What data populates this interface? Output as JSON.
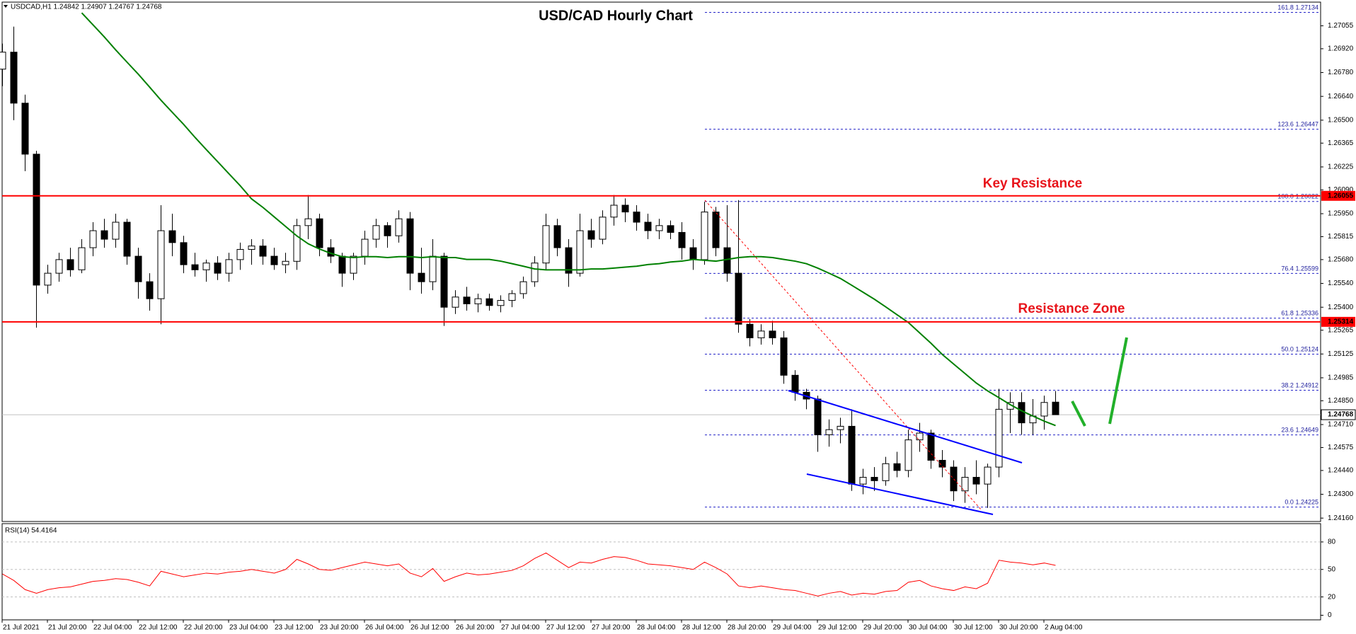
{
  "chart_data": [
    {
      "type": "candlestick",
      "title": "USD/CAD Hourly Chart",
      "header": "USDCAD,H1  1.24842 1.24907 1.24767 1.24768",
      "annotations": [
        "Key Resistance",
        "Resistance Zone"
      ],
      "categories": [
        "21 Jul 2021",
        null,
        null,
        null,
        "21 Jul 20:00",
        null,
        null,
        null,
        "22 Jul 04:00",
        null,
        null,
        null,
        "22 Jul 12:00",
        null,
        null,
        null,
        "22 Jul 20:00",
        null,
        null,
        null,
        "23 Jul 04:00",
        null,
        null,
        null,
        "23 Jul 12:00",
        null,
        null,
        null,
        "23 Jul 20:00",
        null,
        null,
        null,
        "26 Jul 04:00",
        null,
        null,
        null,
        "26 Jul 12:00",
        null,
        null,
        null,
        "26 Jul 20:00",
        null,
        null,
        null,
        "27 Jul 04:00",
        null,
        null,
        null,
        "27 Jul 12:00",
        null,
        null,
        null,
        "27 Jul 20:00",
        null,
        null,
        null,
        "28 Jul 04:00",
        null,
        null,
        null,
        "28 Jul 12:00",
        null,
        null,
        null,
        "28 Jul 20:00",
        null,
        null,
        null,
        "29 Jul 04:00",
        null,
        null,
        null,
        "29 Jul 12:00",
        null,
        null,
        null,
        "29 Jul 20:00",
        null,
        null,
        null,
        "30 Jul 04:00",
        null,
        null,
        null,
        "30 Jul 12:00",
        null,
        null,
        null,
        "30 Jul 20:00",
        null,
        null,
        null,
        "2 Aug 04:00",
        null
      ],
      "open": [
        1.268,
        1.269,
        1.266,
        1.263,
        1.2553,
        1.256,
        1.2568,
        1.2562,
        1.2575,
        1.2585,
        1.258,
        1.259,
        1.257,
        1.2555,
        1.2545,
        1.2585,
        1.2578,
        1.2565,
        1.2562,
        1.2566,
        1.256,
        1.2568,
        1.2574,
        1.2576,
        1.257,
        1.2565,
        1.2567,
        1.2588,
        1.2592,
        1.2575,
        1.257,
        1.256,
        1.257,
        1.258,
        1.2588,
        1.2582,
        1.2592,
        1.256,
        1.2555,
        1.257,
        1.254,
        1.2546,
        1.2542,
        1.2545,
        1.2541,
        1.2544,
        1.2548,
        1.2555,
        1.2566,
        1.2588,
        1.2575,
        1.256,
        1.2585,
        1.258,
        1.2593,
        1.26,
        1.2596,
        1.259,
        1.2585,
        1.2588,
        1.2584,
        1.2575,
        1.2568,
        1.2596,
        1.2575,
        1.256,
        1.253,
        1.2522,
        1.2526,
        1.2522,
        1.25,
        1.249,
        1.2486,
        1.2465,
        1.2468,
        1.247,
        1.2436,
        1.244,
        1.2438,
        1.2448,
        1.2444,
        1.2462,
        1.2466,
        1.245,
        1.2446,
        1.2432,
        1.244,
        1.2436,
        1.2446,
        1.248,
        1.2484,
        1.2472,
        1.2476,
        1.24842
      ],
      "high": [
        1.2695,
        1.2705,
        1.2665,
        1.2632,
        1.2565,
        1.2572,
        1.2575,
        1.258,
        1.259,
        1.2592,
        1.2595,
        1.2592,
        1.2575,
        1.256,
        1.26,
        1.2595,
        1.2582,
        1.2572,
        1.2568,
        1.257,
        1.2572,
        1.2578,
        1.258,
        1.258,
        1.2575,
        1.2572,
        1.2592,
        1.2606,
        1.2595,
        1.258,
        1.2572,
        1.2572,
        1.2585,
        1.2592,
        1.259,
        1.2597,
        1.2596,
        1.2575,
        1.258,
        1.2572,
        1.255,
        1.2552,
        1.2548,
        1.2548,
        1.2547,
        1.255,
        1.2558,
        1.257,
        1.2595,
        1.2592,
        1.258,
        1.2595,
        1.2592,
        1.2597,
        1.2606,
        1.2604,
        1.26,
        1.2595,
        1.2592,
        1.2591,
        1.259,
        1.258,
        1.2602,
        1.2599,
        1.26,
        1.2603,
        1.2533,
        1.253,
        1.2532,
        1.2526,
        1.2503,
        1.2492,
        1.2488,
        1.2474,
        1.2475,
        1.248,
        1.2445,
        1.2446,
        1.2452,
        1.2455,
        1.2468,
        1.2472,
        1.2468,
        1.2456,
        1.245,
        1.2446,
        1.245,
        1.2448,
        1.2492,
        1.249,
        1.249,
        1.2486,
        1.2488,
        1.24907
      ],
      "low": [
        1.267,
        1.265,
        1.262,
        1.2528,
        1.2548,
        1.2555,
        1.2558,
        1.256,
        1.257,
        1.2575,
        1.2575,
        1.2565,
        1.2545,
        1.2538,
        1.253,
        1.257,
        1.256,
        1.2558,
        1.2555,
        1.2556,
        1.2555,
        1.2562,
        1.2565,
        1.2565,
        1.2562,
        1.256,
        1.2562,
        1.258,
        1.257,
        1.2566,
        1.2552,
        1.2556,
        1.2565,
        1.2575,
        1.2575,
        1.2578,
        1.255,
        1.2548,
        1.255,
        1.2529,
        1.2536,
        1.2538,
        1.2537,
        1.2538,
        1.2537,
        1.254,
        1.2545,
        1.2552,
        1.2562,
        1.257,
        1.2552,
        1.2558,
        1.2575,
        1.2577,
        1.2588,
        1.259,
        1.2585,
        1.258,
        1.258,
        1.258,
        1.2568,
        1.2562,
        1.2565,
        1.257,
        1.2555,
        1.2525,
        1.2517,
        1.2518,
        1.2518,
        1.2495,
        1.2485,
        1.248,
        1.2455,
        1.2458,
        1.246,
        1.2432,
        1.243,
        1.2432,
        1.2435,
        1.244,
        1.244,
        1.2455,
        1.2445,
        1.244,
        1.2426,
        1.2425,
        1.243,
        1.2422,
        1.244,
        1.2466,
        1.2465,
        1.2465,
        1.2468,
        1.24767
      ],
      "close": [
        1.269,
        1.266,
        1.263,
        1.2553,
        1.256,
        1.2568,
        1.2562,
        1.2575,
        1.2585,
        1.258,
        1.259,
        1.257,
        1.2555,
        1.2545,
        1.2585,
        1.2578,
        1.2565,
        1.2562,
        1.2566,
        1.256,
        1.2568,
        1.2574,
        1.2576,
        1.257,
        1.2565,
        1.2567,
        1.2588,
        1.2592,
        1.2575,
        1.257,
        1.256,
        1.257,
        1.258,
        1.2588,
        1.2582,
        1.2592,
        1.256,
        1.2555,
        1.257,
        1.254,
        1.2546,
        1.2542,
        1.2545,
        1.2541,
        1.2544,
        1.2548,
        1.2555,
        1.2566,
        1.2588,
        1.2575,
        1.256,
        1.2585,
        1.258,
        1.2593,
        1.26,
        1.2596,
        1.259,
        1.2585,
        1.2588,
        1.2584,
        1.2575,
        1.2568,
        1.2596,
        1.2575,
        1.256,
        1.253,
        1.2522,
        1.2526,
        1.2522,
        1.25,
        1.249,
        1.2486,
        1.2465,
        1.2468,
        1.247,
        1.2436,
        1.244,
        1.2438,
        1.2448,
        1.2444,
        1.2462,
        1.2466,
        1.245,
        1.2446,
        1.2432,
        1.244,
        1.2436,
        1.2446,
        1.248,
        1.2484,
        1.2472,
        1.2476,
        1.2484,
        1.24768
      ],
      "moving_average": {
        "color": "#008000",
        "values": [
          null,
          null,
          null,
          null,
          null,
          null,
          null,
          1.27131,
          1.2706,
          1.26989,
          1.26913,
          1.26841,
          1.2677,
          1.26694,
          1.26617,
          1.26546,
          1.26475,
          1.26399,
          1.26327,
          1.26256,
          1.26185,
          1.26114,
          1.26037,
          1.25987,
          1.25931,
          1.25875,
          1.25819,
          1.25773,
          1.25742,
          1.25717,
          1.25697,
          1.25692,
          1.25697,
          1.25697,
          1.25692,
          1.25697,
          1.25697,
          1.25692,
          1.25697,
          1.25692,
          1.25692,
          1.25681,
          1.25681,
          1.25681,
          1.25671,
          1.25656,
          1.25641,
          1.25625,
          1.2562,
          1.2562,
          1.2562,
          1.2562,
          1.25625,
          1.25625,
          1.2563,
          1.25636,
          1.25641,
          1.25651,
          1.25656,
          1.25666,
          1.25671,
          1.25681,
          1.25676,
          1.25671,
          1.25681,
          1.25692,
          1.25697,
          1.25697,
          1.25692,
          1.25681,
          1.25671,
          1.25656,
          1.2563,
          1.256,
          1.25569,
          1.25529,
          1.25488,
          1.25447,
          1.25402,
          1.25356,
          1.2531,
          1.25249,
          1.25188,
          1.25122,
          1.25066,
          1.2501,
          1.24954,
          1.24908,
          1.24868,
          1.24827,
          1.24791,
          1.2476,
          1.2473,
          1.24704
        ]
      },
      "up_color": "#ffffff",
      "down_color": "#000000",
      "ylim": [
        1.2414,
        1.2719
      ],
      "yticks": [
        1.27055,
        {
          "value": 1.2692,
          "label": "1.26920"
        },
        {
          "value": 1.2678,
          "label": "1.26780"
        },
        {
          "value": 1.2664,
          "label": "1.26640"
        },
        {
          "value": 1.265,
          "label": "1.26500"
        },
        1.26365,
        1.26225,
        {
          "value": 1.2609,
          "label": "1.26090"
        },
        {
          "value": 1.2595,
          "label": "1.25950"
        },
        1.25815,
        {
          "value": 1.2568,
          "label": "1.25680"
        },
        {
          "value": 1.2554,
          "label": "1.25540"
        },
        {
          "value": 1.254,
          "label": "1.25400"
        },
        1.25265,
        1.25125,
        1.24985,
        {
          "value": 1.2485,
          "label": "1.24850"
        },
        {
          "value": 1.2471,
          "label": "1.24710"
        },
        1.24575,
        {
          "value": 1.2444,
          "label": "1.24440"
        },
        {
          "value": 1.243,
          "label": "1.24300"
        },
        {
          "value": 1.2416,
          "label": "1.24160"
        }
      ],
      "levels": [
        {
          "price": 1.26055,
          "color": "#ff0000"
        },
        {
          "price": 1.25314,
          "color": "#ff0000"
        }
      ],
      "current_price": {
        "price": 1.24768,
        "color": "#c0c0c0"
      },
      "fib_levels": [
        {
          "ratio": "161.8",
          "price": 1.27134
        },
        {
          "ratio": "123.6",
          "price": 1.26447
        },
        {
          "ratio": "100.0",
          "price": 1.26022
        },
        {
          "ratio": "76.4",
          "price": 1.25599
        },
        {
          "ratio": "61.8",
          "price": 1.25336
        },
        {
          "ratio": "50.0",
          "price": 1.25124
        },
        {
          "ratio": "38.2",
          "price": 1.24912
        },
        {
          "ratio": "23.6",
          "price": 1.24649
        },
        {
          "ratio": "0.0",
          "price": 1.24225
        }
      ],
      "fib_color": "#2323c8"
    },
    {
      "type": "line",
      "label": "RSI(14) 54.4164",
      "color": "#ff0000",
      "values": [
        45,
        38,
        28,
        24,
        28,
        30,
        31,
        34,
        37,
        38,
        40,
        39,
        36,
        32,
        48,
        45,
        42,
        44,
        46,
        45,
        47,
        48,
        50,
        48,
        46,
        50,
        61,
        56,
        50,
        49,
        52,
        55,
        58,
        56,
        54,
        56,
        46,
        42,
        51,
        37,
        42,
        46,
        44,
        45,
        47,
        49,
        54,
        62,
        68,
        60,
        52,
        58,
        57,
        61,
        64,
        63,
        60,
        56,
        55,
        54,
        52,
        50,
        58,
        52,
        45,
        32,
        30,
        32,
        30,
        28,
        27,
        24,
        21,
        24,
        26,
        22,
        24,
        23,
        26,
        27,
        36,
        38,
        32,
        29,
        27,
        31,
        29,
        35,
        60,
        58,
        57,
        55,
        57,
        54.4164
      ],
      "ylim": [
        -5,
        100
      ],
      "yticks": [
        0,
        20,
        50,
        80
      ],
      "grid": true
    }
  ]
}
